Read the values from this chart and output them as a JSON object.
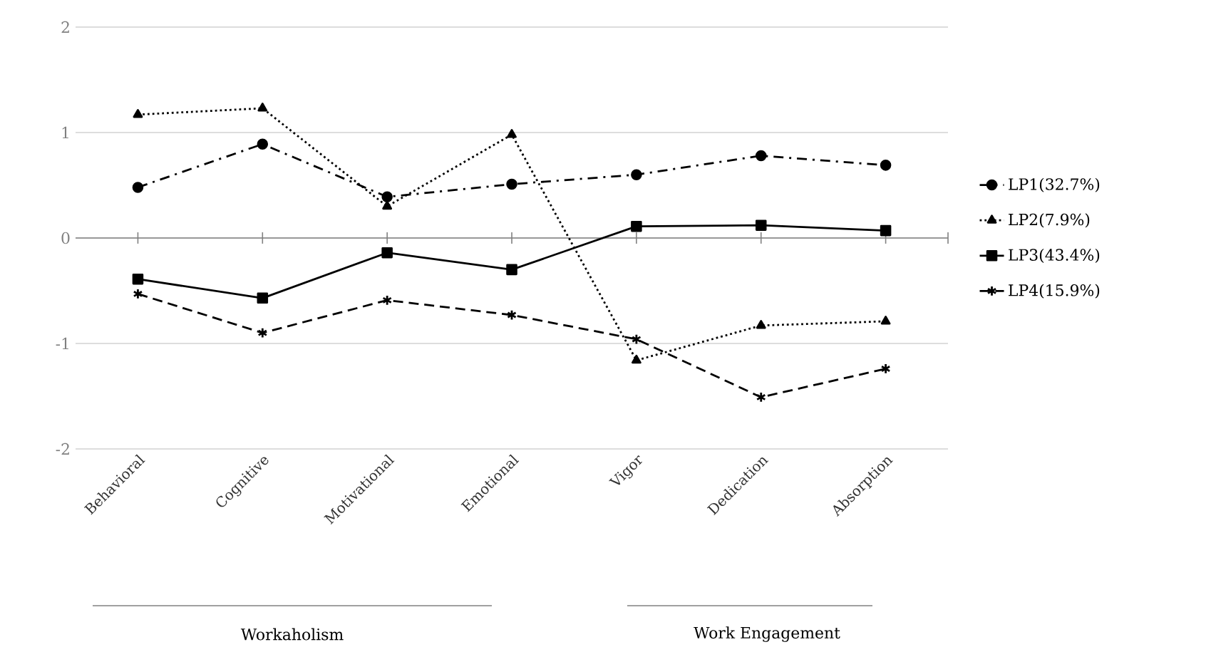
{
  "chart_data": {
    "type": "line",
    "categories": [
      "Behavioral",
      "Cognitive",
      "Motivational",
      "Emotional",
      "Vigor",
      "Dedication",
      "Absorption"
    ],
    "series": [
      {
        "name": "LP1(32.7%)",
        "color": "#000000",
        "marker": "circle",
        "line_style": "dashdot",
        "values": [
          0.48,
          0.89,
          0.39,
          0.51,
          0.6,
          0.78,
          0.69
        ]
      },
      {
        "name": "LP2(7.9%)",
        "color": "#000000",
        "marker": "triangle",
        "line_style": "dotted",
        "values": [
          1.17,
          1.23,
          0.3,
          0.98,
          -1.16,
          -0.83,
          -0.79
        ]
      },
      {
        "name": "LP3(43.4%)",
        "color": "#000000",
        "marker": "square",
        "line_style": "solid",
        "values": [
          -0.39,
          -0.57,
          -0.14,
          -0.3,
          0.11,
          0.12,
          0.07
        ]
      },
      {
        "name": "LP4(15.9%)",
        "color": "#000000",
        "marker": "cross",
        "line_style": "dashed",
        "values": [
          -0.53,
          -0.9,
          -0.59,
          -0.73,
          -0.96,
          -1.51,
          -1.24
        ]
      }
    ],
    "annotations": [
      "Workaholism",
      "Work Engagement"
    ],
    "ylim": [
      -2,
      2
    ],
    "yticks": [
      -2,
      -1,
      0,
      1,
      2
    ],
    "grid": "y",
    "legend": "right"
  }
}
